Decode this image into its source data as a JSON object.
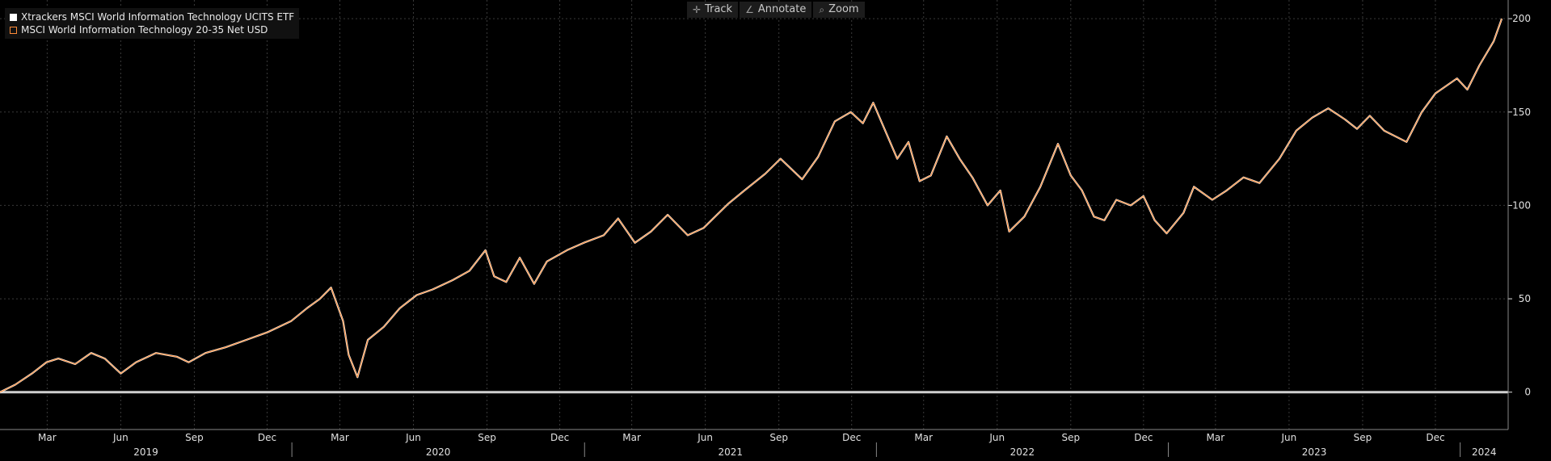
{
  "toolbar": {
    "track_label": "Track",
    "annotate_label": "Annotate",
    "zoom_label": "Zoom"
  },
  "legend": {
    "series_1": "Xtrackers MSCI World Information Technology UCITS ETF",
    "series_2": "MSCI World Information Technology 20-35 Net USD"
  },
  "colors": {
    "background": "#000000",
    "series_1": "#ffffff",
    "series_2": "#ff8c38",
    "grid": "#3a3a3a",
    "zero_line": "#d0d0d0",
    "axis_text": "#e0e0e0"
  },
  "chart_data": {
    "type": "line",
    "title": "",
    "xlabel": "",
    "ylabel": "",
    "ylim": [
      -20,
      210
    ],
    "y_ticks": [
      0,
      50,
      100,
      150,
      200
    ],
    "grid": true,
    "legend_position": "top-left",
    "x_range": [
      "2019-01-01",
      "2024-03-01"
    ],
    "x_month_ticks": [
      {
        "date": "2019-03",
        "label": "Mar"
      },
      {
        "date": "2019-06",
        "label": "Jun"
      },
      {
        "date": "2019-09",
        "label": "Sep"
      },
      {
        "date": "2019-12",
        "label": "Dec"
      },
      {
        "date": "2020-03",
        "label": "Mar"
      },
      {
        "date": "2020-06",
        "label": "Jun"
      },
      {
        "date": "2020-09",
        "label": "Sep"
      },
      {
        "date": "2020-12",
        "label": "Dec"
      },
      {
        "date": "2021-03",
        "label": "Mar"
      },
      {
        "date": "2021-06",
        "label": "Jun"
      },
      {
        "date": "2021-09",
        "label": "Sep"
      },
      {
        "date": "2021-12",
        "label": "Dec"
      },
      {
        "date": "2022-03",
        "label": "Mar"
      },
      {
        "date": "2022-06",
        "label": "Jun"
      },
      {
        "date": "2022-09",
        "label": "Sep"
      },
      {
        "date": "2022-12",
        "label": "Dec"
      },
      {
        "date": "2023-03",
        "label": "Mar"
      },
      {
        "date": "2023-06",
        "label": "Jun"
      },
      {
        "date": "2023-09",
        "label": "Sep"
      },
      {
        "date": "2023-12",
        "label": "Dec"
      }
    ],
    "x_year_labels": [
      "2019",
      "2020",
      "2021",
      "2022",
      "2023",
      "2024"
    ],
    "series": [
      {
        "name": "Xtrackers MSCI World Information Technology UCITS ETF",
        "points": [
          [
            "2019-01-01",
            0
          ],
          [
            "2019-01-20",
            4
          ],
          [
            "2019-02-10",
            10
          ],
          [
            "2019-02-28",
            16
          ],
          [
            "2019-03-15",
            18
          ],
          [
            "2019-04-05",
            15
          ],
          [
            "2019-04-25",
            21
          ],
          [
            "2019-05-12",
            18
          ],
          [
            "2019-06-01",
            10
          ],
          [
            "2019-06-20",
            16
          ],
          [
            "2019-07-15",
            21
          ],
          [
            "2019-08-10",
            19
          ],
          [
            "2019-08-25",
            16
          ],
          [
            "2019-09-15",
            21
          ],
          [
            "2019-10-10",
            24
          ],
          [
            "2019-11-05",
            28
          ],
          [
            "2019-12-01",
            32
          ],
          [
            "2019-12-31",
            38
          ],
          [
            "2020-01-20",
            45
          ],
          [
            "2020-02-05",
            50
          ],
          [
            "2020-02-19",
            56
          ],
          [
            "2020-03-05",
            38
          ],
          [
            "2020-03-12",
            20
          ],
          [
            "2020-03-23",
            8
          ],
          [
            "2020-04-05",
            28
          ],
          [
            "2020-04-25",
            35
          ],
          [
            "2020-05-15",
            45
          ],
          [
            "2020-06-05",
            52
          ],
          [
            "2020-06-25",
            55
          ],
          [
            "2020-07-20",
            60
          ],
          [
            "2020-08-10",
            65
          ],
          [
            "2020-08-30",
            76
          ],
          [
            "2020-09-10",
            62
          ],
          [
            "2020-09-25",
            59
          ],
          [
            "2020-10-12",
            72
          ],
          [
            "2020-10-30",
            58
          ],
          [
            "2020-11-15",
            70
          ],
          [
            "2020-12-10",
            76
          ],
          [
            "2020-12-31",
            80
          ],
          [
            "2021-01-25",
            84
          ],
          [
            "2021-02-12",
            93
          ],
          [
            "2021-03-05",
            80
          ],
          [
            "2021-03-25",
            86
          ],
          [
            "2021-04-15",
            95
          ],
          [
            "2021-05-10",
            84
          ],
          [
            "2021-05-30",
            88
          ],
          [
            "2021-06-30",
            101
          ],
          [
            "2021-07-20",
            108
          ],
          [
            "2021-08-15",
            117
          ],
          [
            "2021-09-03",
            125
          ],
          [
            "2021-09-30",
            114
          ],
          [
            "2021-10-20",
            126
          ],
          [
            "2021-11-10",
            145
          ],
          [
            "2021-11-30",
            150
          ],
          [
            "2021-12-15",
            144
          ],
          [
            "2021-12-28",
            155
          ],
          [
            "2022-01-10",
            142
          ],
          [
            "2022-01-27",
            125
          ],
          [
            "2022-02-10",
            134
          ],
          [
            "2022-02-24",
            113
          ],
          [
            "2022-03-10",
            116
          ],
          [
            "2022-03-30",
            137
          ],
          [
            "2022-04-15",
            125
          ],
          [
            "2022-05-01",
            115
          ],
          [
            "2022-05-20",
            100
          ],
          [
            "2022-06-05",
            108
          ],
          [
            "2022-06-16",
            86
          ],
          [
            "2022-07-05",
            94
          ],
          [
            "2022-07-25",
            110
          ],
          [
            "2022-08-16",
            133
          ],
          [
            "2022-09-01",
            116
          ],
          [
            "2022-09-15",
            108
          ],
          [
            "2022-09-30",
            94
          ],
          [
            "2022-10-13",
            92
          ],
          [
            "2022-10-28",
            103
          ],
          [
            "2022-11-15",
            100
          ],
          [
            "2022-12-01",
            105
          ],
          [
            "2022-12-15",
            92
          ],
          [
            "2022-12-30",
            85
          ],
          [
            "2023-01-20",
            96
          ],
          [
            "2023-02-02",
            110
          ],
          [
            "2023-02-25",
            103
          ],
          [
            "2023-03-15",
            108
          ],
          [
            "2023-04-05",
            115
          ],
          [
            "2023-04-25",
            112
          ],
          [
            "2023-05-20",
            125
          ],
          [
            "2023-06-10",
            140
          ],
          [
            "2023-06-30",
            147
          ],
          [
            "2023-07-20",
            152
          ],
          [
            "2023-08-10",
            146
          ],
          [
            "2023-08-25",
            141
          ],
          [
            "2023-09-10",
            148
          ],
          [
            "2023-09-28",
            140
          ],
          [
            "2023-10-26",
            134
          ],
          [
            "2023-11-14",
            150
          ],
          [
            "2023-12-01",
            160
          ],
          [
            "2023-12-28",
            168
          ],
          [
            "2024-01-10",
            162
          ],
          [
            "2024-01-25",
            175
          ],
          [
            "2024-02-12",
            188
          ],
          [
            "2024-02-22",
            200
          ]
        ]
      },
      {
        "name": "MSCI World Information Technology 20-35 Net USD",
        "points": [
          [
            "2019-01-01",
            0
          ],
          [
            "2019-01-20",
            4
          ],
          [
            "2019-02-10",
            10
          ],
          [
            "2019-02-28",
            16
          ],
          [
            "2019-03-15",
            18
          ],
          [
            "2019-04-05",
            15
          ],
          [
            "2019-04-25",
            21
          ],
          [
            "2019-05-12",
            18
          ],
          [
            "2019-06-01",
            10
          ],
          [
            "2019-06-20",
            16
          ],
          [
            "2019-07-15",
            21
          ],
          [
            "2019-08-10",
            19
          ],
          [
            "2019-08-25",
            16
          ],
          [
            "2019-09-15",
            21
          ],
          [
            "2019-10-10",
            24
          ],
          [
            "2019-11-05",
            28
          ],
          [
            "2019-12-01",
            32
          ],
          [
            "2019-12-31",
            38
          ],
          [
            "2020-01-20",
            45
          ],
          [
            "2020-02-05",
            50
          ],
          [
            "2020-02-19",
            56
          ],
          [
            "2020-03-05",
            38
          ],
          [
            "2020-03-12",
            20
          ],
          [
            "2020-03-23",
            8
          ],
          [
            "2020-04-05",
            28
          ],
          [
            "2020-04-25",
            35
          ],
          [
            "2020-05-15",
            45
          ],
          [
            "2020-06-05",
            52
          ],
          [
            "2020-06-25",
            55
          ],
          [
            "2020-07-20",
            60
          ],
          [
            "2020-08-10",
            65
          ],
          [
            "2020-08-30",
            76
          ],
          [
            "2020-09-10",
            62
          ],
          [
            "2020-09-25",
            59
          ],
          [
            "2020-10-12",
            72
          ],
          [
            "2020-10-30",
            58
          ],
          [
            "2020-11-15",
            70
          ],
          [
            "2020-12-10",
            76
          ],
          [
            "2020-12-31",
            80
          ],
          [
            "2021-01-25",
            84
          ],
          [
            "2021-02-12",
            93
          ],
          [
            "2021-03-05",
            80
          ],
          [
            "2021-03-25",
            86
          ],
          [
            "2021-04-15",
            95
          ],
          [
            "2021-05-10",
            84
          ],
          [
            "2021-05-30",
            88
          ],
          [
            "2021-06-30",
            101
          ],
          [
            "2021-07-20",
            108
          ],
          [
            "2021-08-15",
            117
          ],
          [
            "2021-09-03",
            125
          ],
          [
            "2021-09-30",
            114
          ],
          [
            "2021-10-20",
            126
          ],
          [
            "2021-11-10",
            145
          ],
          [
            "2021-11-30",
            150
          ],
          [
            "2021-12-15",
            144
          ],
          [
            "2021-12-28",
            155
          ],
          [
            "2022-01-10",
            142
          ],
          [
            "2022-01-27",
            125
          ],
          [
            "2022-02-10",
            134
          ],
          [
            "2022-02-24",
            113
          ],
          [
            "2022-03-10",
            116
          ],
          [
            "2022-03-30",
            137
          ],
          [
            "2022-04-15",
            125
          ],
          [
            "2022-05-01",
            115
          ],
          [
            "2022-05-20",
            100
          ],
          [
            "2022-06-05",
            108
          ],
          [
            "2022-06-16",
            86
          ],
          [
            "2022-07-05",
            94
          ],
          [
            "2022-07-25",
            110
          ],
          [
            "2022-08-16",
            133
          ],
          [
            "2022-09-01",
            116
          ],
          [
            "2022-09-15",
            108
          ],
          [
            "2022-09-30",
            94
          ],
          [
            "2022-10-13",
            92
          ],
          [
            "2022-10-28",
            103
          ],
          [
            "2022-11-15",
            100
          ],
          [
            "2022-12-01",
            105
          ],
          [
            "2022-12-15",
            92
          ],
          [
            "2022-12-30",
            85
          ],
          [
            "2023-01-20",
            96
          ],
          [
            "2023-02-02",
            110
          ],
          [
            "2023-02-25",
            103
          ],
          [
            "2023-03-15",
            108
          ],
          [
            "2023-04-05",
            115
          ],
          [
            "2023-04-25",
            112
          ],
          [
            "2023-05-20",
            125
          ],
          [
            "2023-06-10",
            140
          ],
          [
            "2023-06-30",
            147
          ],
          [
            "2023-07-20",
            152
          ],
          [
            "2023-08-10",
            146
          ],
          [
            "2023-08-25",
            141
          ],
          [
            "2023-09-10",
            148
          ],
          [
            "2023-09-28",
            140
          ],
          [
            "2023-10-26",
            134
          ],
          [
            "2023-11-14",
            150
          ],
          [
            "2023-12-01",
            160
          ],
          [
            "2023-12-28",
            168
          ],
          [
            "2024-01-10",
            162
          ],
          [
            "2024-01-25",
            175
          ],
          [
            "2024-02-12",
            188
          ],
          [
            "2024-02-22",
            200
          ]
        ]
      }
    ]
  }
}
